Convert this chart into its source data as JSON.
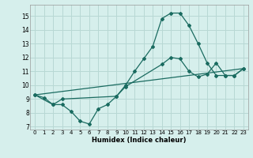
{
  "title": "",
  "xlabel": "Humidex (Indice chaleur)",
  "bg_color": "#d6efec",
  "grid_color": "#b8d8d4",
  "line_color": "#1a6b60",
  "xlim": [
    -0.5,
    23.5
  ],
  "ylim": [
    6.8,
    15.8
  ],
  "yticks": [
    7,
    8,
    9,
    10,
    11,
    12,
    13,
    14,
    15
  ],
  "xticks": [
    0,
    1,
    2,
    3,
    4,
    5,
    6,
    7,
    8,
    9,
    10,
    11,
    12,
    13,
    14,
    15,
    16,
    17,
    18,
    19,
    20,
    21,
    22,
    23
  ],
  "line1_x": [
    0,
    1,
    2,
    3,
    4,
    5,
    6,
    7,
    8,
    9,
    10,
    11,
    12,
    13,
    14,
    15,
    16,
    17,
    18,
    19,
    20,
    21,
    22,
    23
  ],
  "line1_y": [
    9.3,
    9.1,
    8.6,
    8.6,
    8.1,
    7.4,
    7.2,
    8.3,
    8.6,
    9.2,
    10.0,
    11.0,
    11.9,
    12.8,
    14.8,
    15.2,
    15.2,
    14.3,
    13.0,
    11.6,
    10.7,
    10.7,
    10.7,
    11.2
  ],
  "line2_x": [
    0,
    2,
    3,
    9,
    10,
    14,
    15,
    16,
    17,
    18,
    19,
    20,
    21,
    22,
    23
  ],
  "line2_y": [
    9.3,
    8.6,
    9.0,
    9.2,
    9.9,
    11.5,
    12.0,
    11.9,
    11.0,
    10.6,
    10.8,
    11.6,
    10.7,
    10.7,
    11.2
  ],
  "line3_x": [
    0,
    23
  ],
  "line3_y": [
    9.3,
    11.2
  ]
}
